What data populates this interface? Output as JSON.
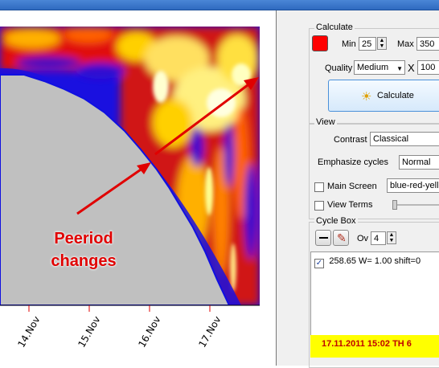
{
  "chart": {
    "x_ticks": [
      "14.Nov",
      "15.Nov",
      "16.Nov",
      "17.Nov"
    ],
    "annotation": {
      "line1": "Peeriod",
      "line2": "changes"
    }
  },
  "colors": {
    "accent": "#ff0000",
    "info_bar": "#ffff00",
    "info_text": "#c00000"
  },
  "calculate": {
    "title": "Calculate",
    "min_label": "Min",
    "min_value": "25",
    "max_label": "Max",
    "max_value": "350",
    "quality_label": "Quality",
    "quality_value": "Medium",
    "x_label": "X",
    "x_value": "100",
    "button_label": "Calculate"
  },
  "view": {
    "title": "View",
    "contrast_label": "Contrast",
    "contrast_value": "Classical",
    "emphasize_label": "Emphasize cycles",
    "emphasize_value": "Normal",
    "main_screen_label": "Main Screen",
    "main_screen_checked": false,
    "palette_value": "blue-red-yello",
    "view_terms_label": "View Terms",
    "view_terms_checked": false
  },
  "cycle_box": {
    "title": "Cycle Box",
    "ov_label": "Ov",
    "ov_value": "4",
    "items": [
      {
        "checked": true,
        "text": "258.65  W= 1.00  shift=0"
      }
    ]
  },
  "status": {
    "text": "17.11.2011   15:02 TH   6 "
  }
}
